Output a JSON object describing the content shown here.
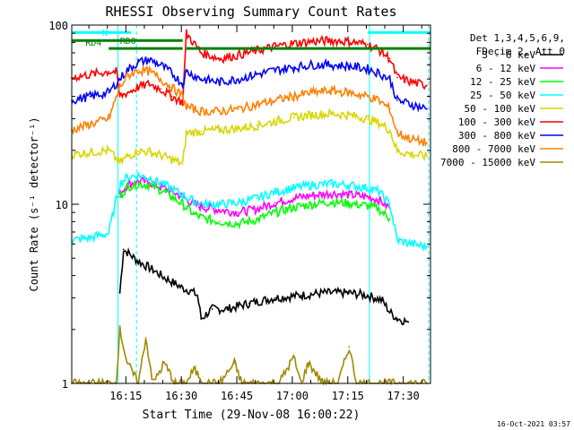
{
  "chart_data": {
    "type": "line",
    "title": "RHESSI Observing Summary Count Rates",
    "xlabel": "Start Time (29-Nov-08 16:00:22)",
    "ylabel": "Count Rate (s⁻¹ detector⁻¹)",
    "yscale": "log",
    "ylim": [
      1,
      100
    ],
    "xlim_minutes": [
      0,
      97
    ],
    "x_ticks": [
      "16:15",
      "16:30",
      "16:45",
      "17:00",
      "17:15",
      "17:30"
    ],
    "y_ticks": [
      "1",
      "10",
      "100"
    ],
    "grid": false,
    "legend_position": "right",
    "info_lines": [
      "Det 1,3,4,5,6,9,",
      "FDecim 2, Att 0"
    ],
    "footer_timestamp": "16-Oct-2021 03:57",
    "annotations": [
      "N",
      "RD0",
      "RD4"
    ],
    "series": [
      {
        "name": "3 - 6 keV",
        "color": "#000000",
        "x": [
          13,
          14,
          18,
          22,
          25,
          28,
          30,
          32,
          34,
          35,
          38,
          42,
          48,
          55,
          62,
          68,
          75,
          80,
          82,
          84,
          86,
          88,
          91
        ],
        "y": [
          3.2,
          5.6,
          4.8,
          4.3,
          3.9,
          3.6,
          3.4,
          3.3,
          3.1,
          2.3,
          2.6,
          2.6,
          2.8,
          3.0,
          3.1,
          3.2,
          3.2,
          3.1,
          3.0,
          2.9,
          2.5,
          2.3,
          2.2
        ]
      },
      {
        "name": "6 - 12 keV",
        "color": "#ff00ff",
        "x": [
          13,
          15,
          18,
          21,
          24,
          27,
          30,
          33,
          36,
          40,
          45,
          50,
          55,
          60,
          65,
          70,
          75,
          80,
          83,
          86
        ],
        "y": [
          11.5,
          12.8,
          13.5,
          13.2,
          12.5,
          11.8,
          11.0,
          10.0,
          9.6,
          9.3,
          9.0,
          9.4,
          10.2,
          10.8,
          11.2,
          11.5,
          11.3,
          11.0,
          10.6,
          9.5
        ]
      },
      {
        "name": "12 - 25 keV",
        "color": "#00ff00",
        "x": [
          13,
          15,
          18,
          21,
          24,
          27,
          30,
          33,
          36,
          40,
          45,
          50,
          55,
          60,
          65,
          70,
          75,
          80,
          83,
          86
        ],
        "y": [
          11.0,
          12.5,
          13.0,
          12.8,
          12.0,
          11.0,
          10.0,
          8.8,
          8.3,
          8.0,
          7.8,
          8.2,
          9.0,
          9.6,
          10.0,
          10.3,
          10.1,
          9.8,
          9.4,
          8.3
        ]
      },
      {
        "name": "25 - 50 keV",
        "color": "#00ffff",
        "x": [
          0,
          5,
          10,
          13,
          15,
          18,
          21,
          24,
          27,
          30,
          33,
          36,
          40,
          45,
          50,
          55,
          60,
          65,
          70,
          75,
          80,
          83,
          86,
          88,
          92,
          96
        ],
        "y": [
          6.3,
          6.5,
          6.9,
          13.0,
          14.2,
          14.5,
          14.0,
          13.2,
          12.2,
          11.3,
          10.4,
          10.0,
          10.0,
          10.2,
          10.8,
          11.7,
          12.3,
          12.8,
          13.0,
          12.8,
          12.3,
          11.8,
          10.0,
          6.3,
          6.0,
          5.8
        ]
      },
      {
        "name": "50 - 100 keV",
        "color": "#d7d700",
        "x": [
          0,
          5,
          10,
          13,
          15,
          18,
          21,
          24,
          27,
          30,
          31,
          35,
          40,
          45,
          50,
          55,
          60,
          65,
          70,
          75,
          80,
          83,
          86,
          88,
          92,
          96
        ],
        "y": [
          19.0,
          19.5,
          20.0,
          17.0,
          18.5,
          19.8,
          19.6,
          18.8,
          17.8,
          16.8,
          25.0,
          25.5,
          26.0,
          26.5,
          27.5,
          29.0,
          30.5,
          31.5,
          32.0,
          31.5,
          30.0,
          28.5,
          26.0,
          19.8,
          19.0,
          18.5
        ]
      },
      {
        "name": "100 - 300 keV",
        "color": "#ff0000",
        "x": [
          0,
          5,
          10,
          12,
          13,
          15,
          18,
          21,
          24,
          27,
          30,
          31,
          35,
          40,
          45,
          50,
          55,
          60,
          65,
          70,
          75,
          80,
          83,
          86,
          88,
          92,
          96
        ],
        "y": [
          51,
          53,
          55,
          55,
          40,
          42,
          45,
          47,
          44,
          40,
          37,
          90,
          70,
          65,
          68,
          72,
          76,
          79,
          81,
          82,
          81,
          78,
          73,
          65,
          51,
          48,
          46
        ]
      },
      {
        "name": "300 - 800 keV",
        "color": "#0000ff",
        "x": [
          0,
          5,
          10,
          13,
          15,
          18,
          21,
          24,
          27,
          30,
          31,
          35,
          40,
          45,
          50,
          55,
          60,
          65,
          70,
          75,
          80,
          83,
          86,
          88,
          92,
          96
        ],
        "y": [
          38,
          40,
          42,
          50,
          56,
          62,
          64,
          60,
          54,
          47,
          55,
          50,
          48,
          50,
          53,
          56,
          58,
          60,
          60,
          59,
          57,
          54,
          50,
          38,
          36,
          34
        ]
      },
      {
        "name": "800 - 7000 keV",
        "color": "#ff8000",
        "x": [
          0,
          5,
          10,
          13,
          15,
          18,
          21,
          24,
          27,
          30,
          31,
          35,
          40,
          45,
          50,
          55,
          60,
          65,
          70,
          75,
          80,
          83,
          86,
          88,
          92,
          96
        ],
        "y": [
          26,
          28,
          30,
          45,
          52,
          56,
          55,
          50,
          45,
          40,
          35,
          33,
          33,
          34,
          36,
          38,
          40,
          42,
          43,
          42,
          40,
          38,
          34,
          25,
          23,
          22
        ]
      },
      {
        "name": "7000 - 15000 keV",
        "color": "#a08a00",
        "x": [
          0,
          4,
          8,
          12,
          13,
          15,
          18,
          20,
          22,
          25,
          28,
          30,
          31,
          33,
          36,
          40,
          44,
          46,
          48,
          52,
          56,
          60,
          62,
          64,
          68,
          72,
          75,
          77,
          80,
          84,
          86,
          88,
          92,
          96
        ],
        "y": [
          1.0,
          1.0,
          1.0,
          1.0,
          2.0,
          1.3,
          1.0,
          1.8,
          1.0,
          1.3,
          1.0,
          1.0,
          1.0,
          1.2,
          1.0,
          1.0,
          1.3,
          1.0,
          1.0,
          1.0,
          1.0,
          1.4,
          1.0,
          1.3,
          1.0,
          1.0,
          1.6,
          1.0,
          1.0,
          1.0,
          1.0,
          1.0,
          1.0,
          1.0
        ]
      }
    ],
    "flag_bars": [
      {
        "label": "N",
        "color": "#00ffff",
        "x_start": 0,
        "x_end": 16,
        "x_start2": 80,
        "x_end2": 97,
        "level": 91
      },
      {
        "label": "RD0",
        "color": "#007f00",
        "x_start": 0,
        "x_end": 30,
        "level": 82
      },
      {
        "label": "RD4",
        "color": "#007f00",
        "x_start": 10,
        "x_end": 30,
        "x_start2": 31,
        "x_end2": 97,
        "level": 74
      }
    ],
    "vertical_markers": [
      {
        "x": 12.5,
        "color": "#00ffff",
        "style": "solid"
      },
      {
        "x": 17.5,
        "color": "#00ffff",
        "style": "dashed"
      },
      {
        "x": 80.5,
        "color": "#00ffff",
        "style": "solid"
      },
      {
        "x": 96.5,
        "color": "#00ffff",
        "style": "dashed"
      }
    ]
  }
}
